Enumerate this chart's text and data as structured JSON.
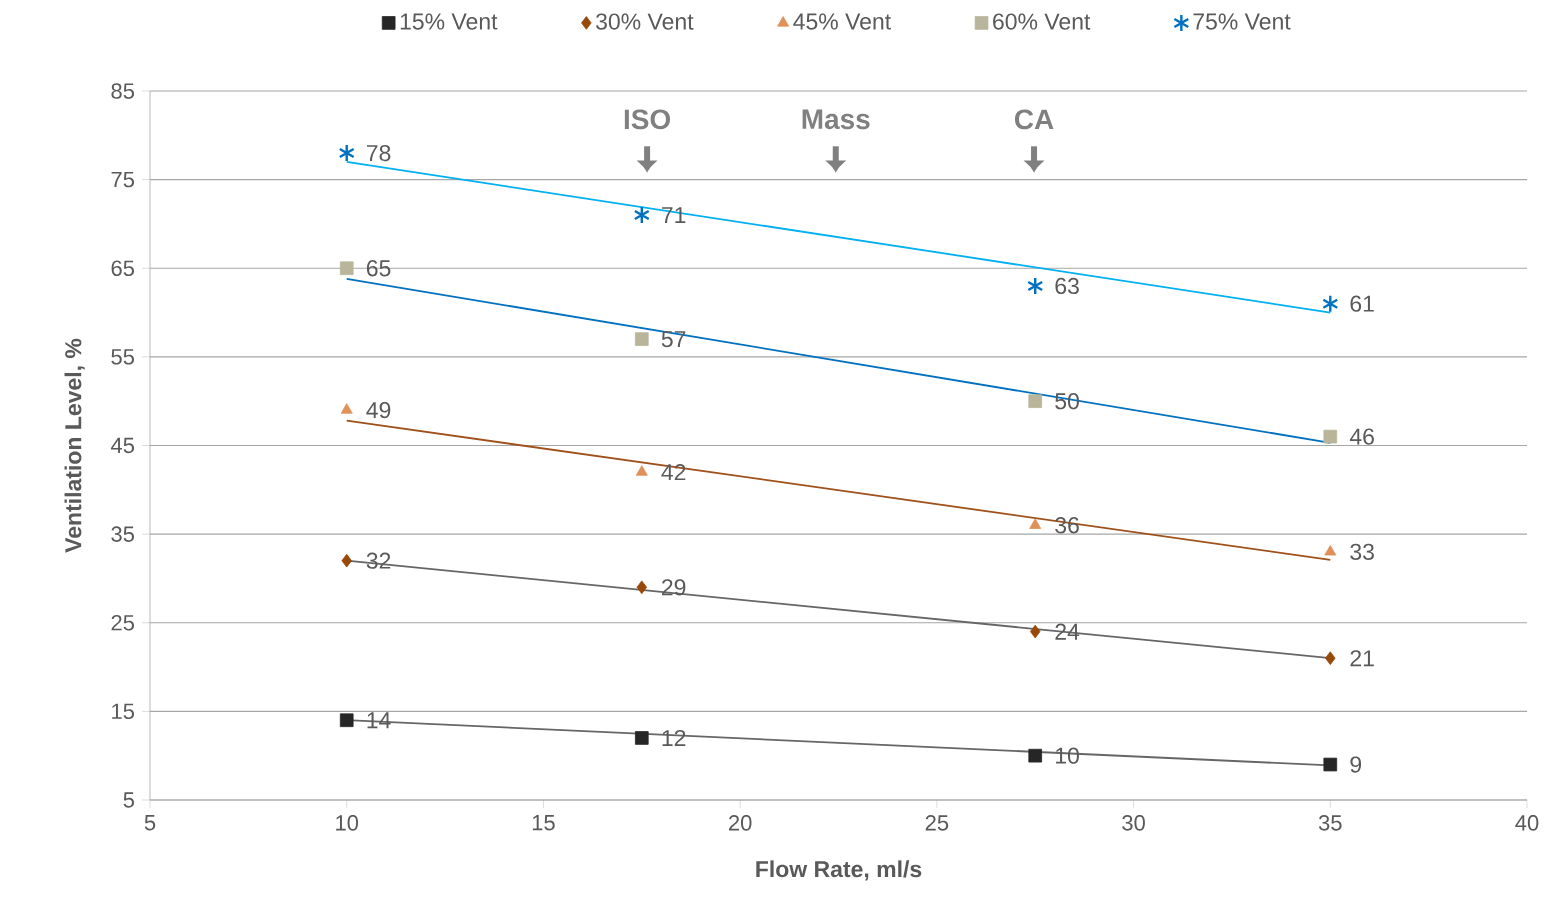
{
  "chart_data": {
    "type": "scatter",
    "xlabel": "Flow Rate, ml/s",
    "ylabel": "Ventilation Level, %",
    "xlim": [
      5,
      40
    ],
    "ylim": [
      5,
      85
    ],
    "xticks": [
      5,
      10,
      15,
      20,
      25,
      30,
      35,
      40
    ],
    "yticks": [
      5,
      15,
      25,
      35,
      45,
      55,
      65,
      75,
      85
    ],
    "grid": "y",
    "legend": "top",
    "series": [
      {
        "name": "15% Vent",
        "color": "#262626",
        "marker": "square",
        "x": [
          10,
          17.5,
          27.5,
          35
        ],
        "values": [
          14,
          12,
          10,
          9
        ],
        "value_labels": [
          "14",
          "12",
          "10",
          "9"
        ]
      },
      {
        "name": "30% Vent",
        "color": "#984807",
        "marker": "diamond",
        "x": [
          10,
          17.5,
          27.5,
          35
        ],
        "values": [
          32,
          29,
          24,
          21
        ],
        "value_labels": [
          "32",
          "29",
          "24",
          "21"
        ]
      },
      {
        "name": "45% Vent",
        "color": "#e0915a",
        "marker": "triangle",
        "x": [
          10,
          17.5,
          27.5,
          35
        ],
        "values": [
          49,
          42,
          36,
          33
        ],
        "value_labels": [
          "49",
          "42",
          "36",
          "33"
        ]
      },
      {
        "name": "60% Vent",
        "color": "#b8b59a",
        "marker": "square",
        "x": [
          10,
          17.5,
          27.5,
          35
        ],
        "values": [
          65,
          57,
          50,
          46
        ],
        "value_labels": [
          "65",
          "57",
          "50",
          "46"
        ]
      },
      {
        "name": "75% Vent",
        "color": "#0070c0",
        "marker": "cross",
        "x": [
          10,
          17.5,
          27.5,
          35
        ],
        "values": [
          78,
          71,
          63,
          61
        ],
        "value_labels": [
          "78",
          "71",
          "63",
          "61"
        ]
      },
      {
        "type": "line",
        "color": "#666666",
        "x": [
          10,
          35
        ],
        "values": [
          14,
          8.9
        ]
      },
      {
        "type": "line",
        "color": "#666666",
        "x": [
          10,
          35
        ],
        "values": [
          32,
          21
        ]
      },
      {
        "type": "line",
        "color": "#a0501a",
        "x": [
          10,
          35
        ],
        "values": [
          47.8,
          32.1
        ]
      },
      {
        "type": "line",
        "color": "#0070c0",
        "x": [
          10,
          35
        ],
        "values": [
          63.8,
          45.3
        ]
      },
      {
        "type": "line",
        "color": "#00b0f0",
        "x": [
          10,
          35
        ],
        "values": [
          77,
          60
        ]
      }
    ],
    "annotations": [
      "ISO",
      "Mass",
      "CA"
    ]
  }
}
